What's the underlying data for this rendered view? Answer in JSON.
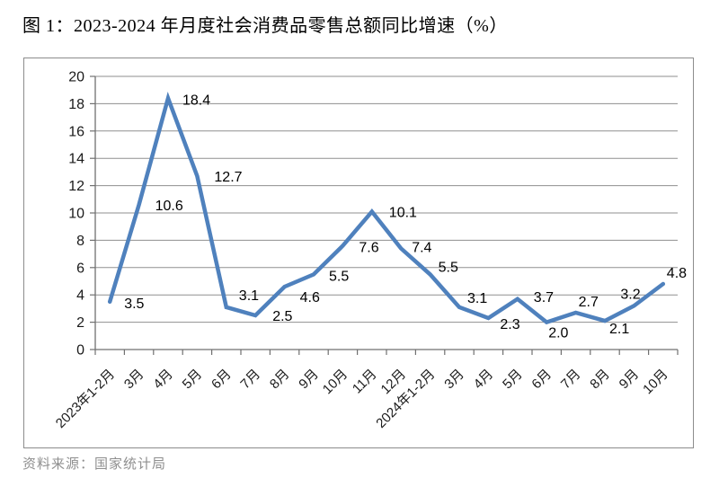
{
  "title": "图 1：2023-2024 年月度社会消费品零售总额同比增速（%）",
  "source_note": "资料来源：国家统计局",
  "colors": {
    "line": "#4F81BD",
    "gridline": "#8f8f8f",
    "axis": "#707070",
    "tick_label_text": "#1a1a1a",
    "data_label_text": "#000000",
    "title_text": "#000000",
    "source_text": "#8f8f8f",
    "frame_border": "#8c8c8c"
  },
  "chart_data": {
    "type": "line",
    "title": "图 1：2023-2024 年月度社会消费品零售总额同比增速（%）",
    "categories": [
      "2023年1-2月",
      "3月",
      "4月",
      "5月",
      "6月",
      "7月",
      "8月",
      "9月",
      "10月",
      "11月",
      "12月",
      "2024年1-2月",
      "3月",
      "4月",
      "5月",
      "6月",
      "7月",
      "8月",
      "9月",
      "10月"
    ],
    "values": [
      3.5,
      10.6,
      18.4,
      12.7,
      3.1,
      2.5,
      4.6,
      5.5,
      7.6,
      10.1,
      7.4,
      5.5,
      3.1,
      2.3,
      3.7,
      2.0,
      2.7,
      2.1,
      3.2,
      4.8
    ],
    "xlabel": "",
    "ylabel": "",
    "ylim": [
      0,
      20
    ],
    "ytick_step": 2,
    "yticks": [
      0,
      2,
      4,
      6,
      8,
      10,
      12,
      14,
      16,
      18,
      20
    ],
    "grid": true,
    "legend": false,
    "data_labels": true,
    "label_format": "one_decimal",
    "x_label_rotation": -45
  }
}
